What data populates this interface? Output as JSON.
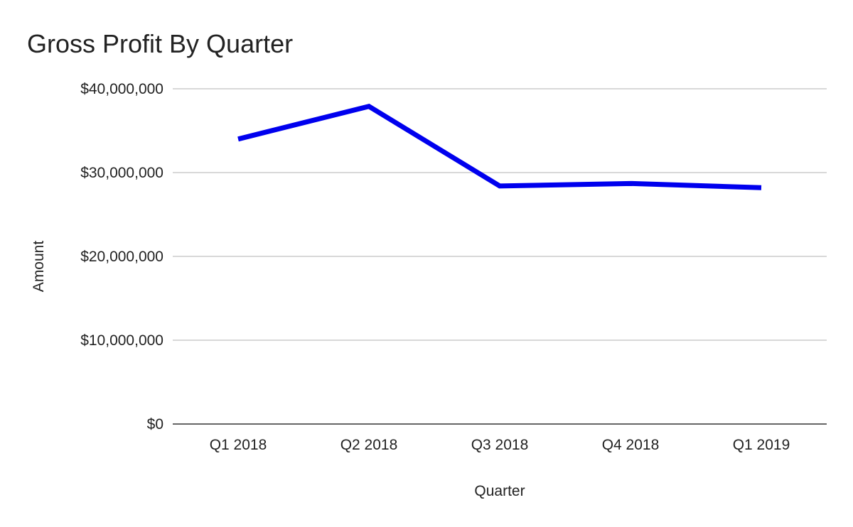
{
  "chart_data": {
    "type": "line",
    "title": "Gross Profit By Quarter",
    "xlabel": "Quarter",
    "ylabel": "Amount",
    "categories": [
      "Q1 2018",
      "Q2 2018",
      "Q3 2018",
      "Q4 2018",
      "Q1 2019"
    ],
    "series": [
      {
        "values": [
          34000000,
          37900000,
          28400000,
          28700000,
          28200000
        ],
        "color": "#0000ee"
      }
    ],
    "ylim": [
      0,
      40000000
    ],
    "yticks": [
      0,
      10000000,
      20000000,
      30000000,
      40000000
    ],
    "ytick_labels": [
      "$0",
      "$10,000,000",
      "$20,000,000",
      "$30,000,000",
      "$40,000,000"
    ],
    "grid": true,
    "legend": "none"
  }
}
